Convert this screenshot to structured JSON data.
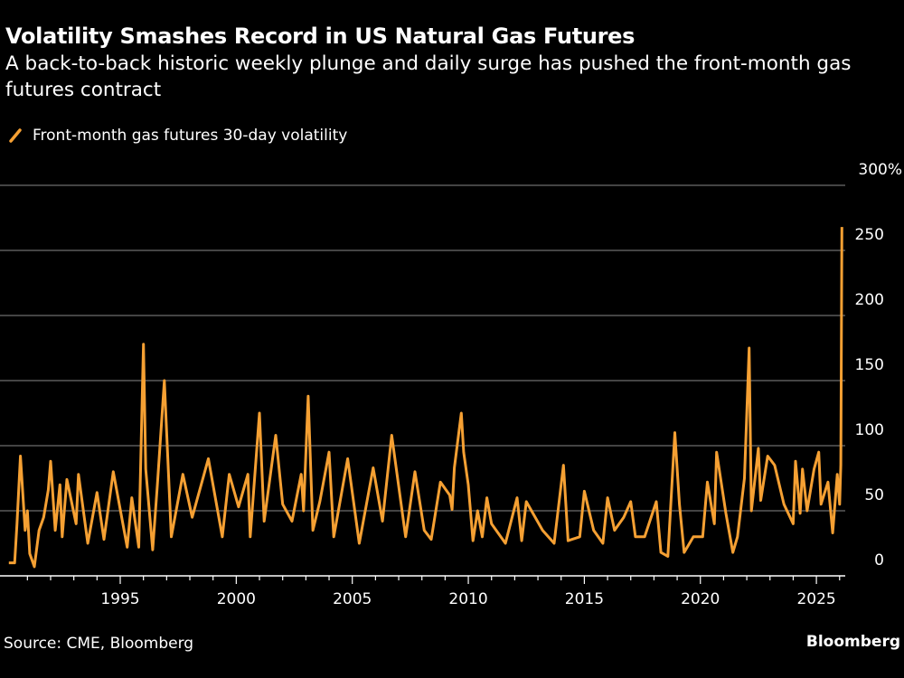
{
  "header": {
    "title": "Volatility Smashes Record in US Natural Gas Futures",
    "subtitle": "A back-to-back historic weekly plunge and daily surge has pushed the front-month gas futures contract"
  },
  "footer": {
    "source": "Source: CME, Bloomberg",
    "logo": "Bloomberg"
  },
  "chart_data": {
    "type": "line",
    "title": "Volatility Smashes Record in US Natural Gas Futures",
    "subtitle": "A back-to-back historic weekly plunge and daily surge has pushed the front-month gas futures contract",
    "xlabel": "",
    "ylabel": "",
    "xlim": [
      1990,
      2027
    ],
    "ylim": [
      0,
      300
    ],
    "y_ticks": [
      {
        "v": 0,
        "label": "0"
      },
      {
        "v": 50,
        "label": "50"
      },
      {
        "v": 100,
        "label": "100"
      },
      {
        "v": 150,
        "label": "150"
      },
      {
        "v": 200,
        "label": "200"
      },
      {
        "v": 250,
        "label": "250"
      },
      {
        "v": 300,
        "label": "300%"
      }
    ],
    "x_ticks": [
      {
        "v": 1995,
        "label": "1995"
      },
      {
        "v": 2000,
        "label": "2000"
      },
      {
        "v": 2005,
        "label": "2005"
      },
      {
        "v": 2010,
        "label": "2010"
      },
      {
        "v": 2015,
        "label": "2015"
      },
      {
        "v": 2020,
        "label": "2020"
      },
      {
        "v": 2025,
        "label": "2025"
      }
    ],
    "grid": true,
    "legend": "top-left",
    "colors": {
      "line": "#f5a033",
      "grid": "#5a5a5a",
      "axis": "#ffffff",
      "background": "#000000"
    },
    "series": [
      {
        "name": "Front-month gas futures 30-day volatility",
        "points": [
          [
            1990.2,
            10
          ],
          [
            1990.45,
            10
          ],
          [
            1990.55,
            40
          ],
          [
            1990.7,
            92
          ],
          [
            1990.9,
            35
          ],
          [
            1991.0,
            50
          ],
          [
            1991.1,
            17
          ],
          [
            1991.3,
            7
          ],
          [
            1991.5,
            35
          ],
          [
            1991.7,
            45
          ],
          [
            1991.9,
            66
          ],
          [
            1992.0,
            88
          ],
          [
            1992.2,
            35
          ],
          [
            1992.4,
            70
          ],
          [
            1992.5,
            30
          ],
          [
            1992.7,
            74
          ],
          [
            1993.1,
            40
          ],
          [
            1993.2,
            78
          ],
          [
            1993.6,
            25
          ],
          [
            1994.0,
            64
          ],
          [
            1994.3,
            28
          ],
          [
            1994.7,
            80
          ],
          [
            1995.3,
            22
          ],
          [
            1995.5,
            60
          ],
          [
            1995.8,
            22
          ],
          [
            1996.0,
            178
          ],
          [
            1996.1,
            82
          ],
          [
            1996.4,
            20
          ],
          [
            1996.6,
            70
          ],
          [
            1996.9,
            150
          ],
          [
            1997.2,
            30
          ],
          [
            1997.7,
            78
          ],
          [
            1998.1,
            45
          ],
          [
            1998.8,
            90
          ],
          [
            1999.4,
            30
          ],
          [
            1999.7,
            78
          ],
          [
            2000.1,
            53
          ],
          [
            2000.5,
            78
          ],
          [
            2000.6,
            30
          ],
          [
            2001.0,
            125
          ],
          [
            2001.2,
            42
          ],
          [
            2001.7,
            108
          ],
          [
            2002.0,
            55
          ],
          [
            2002.4,
            42
          ],
          [
            2002.8,
            78
          ],
          [
            2002.9,
            50
          ],
          [
            2003.1,
            138
          ],
          [
            2003.3,
            35
          ],
          [
            2003.6,
            57
          ],
          [
            2004.0,
            95
          ],
          [
            2004.2,
            30
          ],
          [
            2004.8,
            90
          ],
          [
            2005.3,
            25
          ],
          [
            2005.9,
            83
          ],
          [
            2006.3,
            42
          ],
          [
            2006.7,
            108
          ],
          [
            2007.3,
            30
          ],
          [
            2007.7,
            80
          ],
          [
            2008.1,
            35
          ],
          [
            2008.4,
            28
          ],
          [
            2008.8,
            72
          ],
          [
            2009.2,
            62
          ],
          [
            2009.3,
            51
          ],
          [
            2009.4,
            83
          ],
          [
            2009.7,
            125
          ],
          [
            2009.8,
            95
          ],
          [
            2010.0,
            70
          ],
          [
            2010.2,
            27
          ],
          [
            2010.4,
            50
          ],
          [
            2010.6,
            30
          ],
          [
            2010.8,
            60
          ],
          [
            2011.0,
            40
          ],
          [
            2011.6,
            25
          ],
          [
            2012.1,
            60
          ],
          [
            2012.3,
            27
          ],
          [
            2012.5,
            57
          ],
          [
            2013.2,
            35
          ],
          [
            2013.7,
            25
          ],
          [
            2014.1,
            85
          ],
          [
            2014.3,
            27
          ],
          [
            2014.8,
            30
          ],
          [
            2015.0,
            65
          ],
          [
            2015.4,
            35
          ],
          [
            2015.8,
            25
          ],
          [
            2016.0,
            60
          ],
          [
            2016.3,
            35
          ],
          [
            2016.7,
            45
          ],
          [
            2017.0,
            57
          ],
          [
            2017.2,
            30
          ],
          [
            2017.6,
            30
          ],
          [
            2018.1,
            57
          ],
          [
            2018.3,
            18
          ],
          [
            2018.6,
            15
          ],
          [
            2018.9,
            110
          ],
          [
            2019.1,
            55
          ],
          [
            2019.3,
            18
          ],
          [
            2019.7,
            30
          ],
          [
            2020.1,
            30
          ],
          [
            2020.3,
            72
          ],
          [
            2020.6,
            40
          ],
          [
            2020.7,
            95
          ],
          [
            2021.1,
            48
          ],
          [
            2021.4,
            18
          ],
          [
            2021.6,
            30
          ],
          [
            2021.9,
            75
          ],
          [
            2022.1,
            175
          ],
          [
            2022.2,
            50
          ],
          [
            2022.5,
            98
          ],
          [
            2022.6,
            58
          ],
          [
            2022.9,
            92
          ],
          [
            2023.2,
            85
          ],
          [
            2023.6,
            55
          ],
          [
            2024.0,
            40
          ],
          [
            2024.1,
            88
          ],
          [
            2024.3,
            48
          ],
          [
            2024.4,
            82
          ],
          [
            2024.6,
            50
          ],
          [
            2024.9,
            82
          ],
          [
            2025.1,
            95
          ],
          [
            2025.2,
            55
          ],
          [
            2025.5,
            72
          ],
          [
            2025.7,
            33
          ],
          [
            2025.9,
            78
          ],
          [
            2026.0,
            55
          ],
          [
            2026.05,
            85
          ],
          [
            2026.1,
            268
          ]
        ]
      }
    ]
  }
}
